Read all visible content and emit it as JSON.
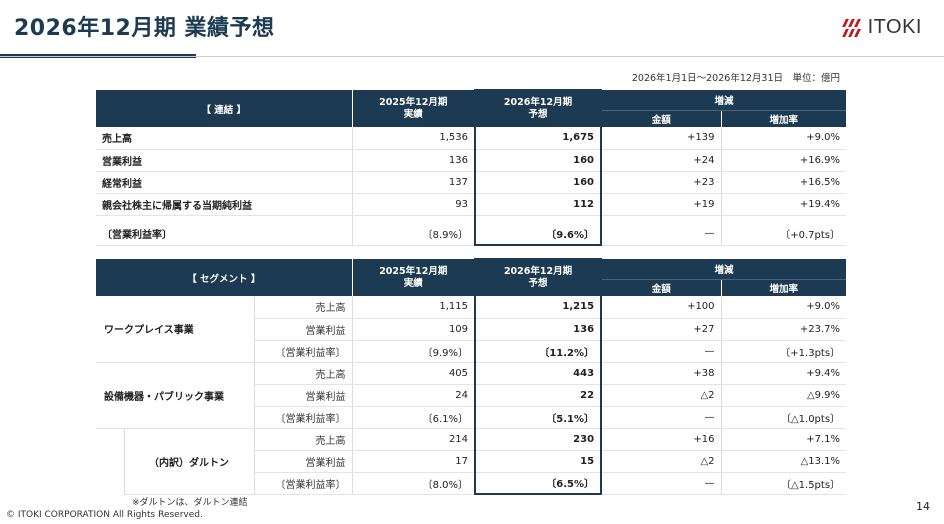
{
  "header": {
    "title": "2026年12月期 業績予想",
    "logo_text": "ITOKI",
    "period": "2026年1月1日～2026年12月31日　単位：億円"
  },
  "consolidated": {
    "section_label": "【 連結 】",
    "col_prev_1": "2025年12月期",
    "col_prev_2": "実績",
    "col_fcst_1": "2026年12月期",
    "col_fcst_2": "予想",
    "col_change": "増減",
    "col_amount": "金額",
    "col_rate": "増加率",
    "rows": [
      {
        "label": "売上高",
        "prev": "1,536",
        "fcst": "1,675",
        "amount": "+139",
        "rate": "+9.0%"
      },
      {
        "label": "営業利益",
        "prev": "136",
        "fcst": "160",
        "amount": "+24",
        "rate": "+16.9%"
      },
      {
        "label": "経常利益",
        "prev": "137",
        "fcst": "160",
        "amount": "+23",
        "rate": "+16.5%"
      },
      {
        "label": "親会社株主に帰属する当期純利益",
        "prev": "93",
        "fcst": "112",
        "amount": "+19",
        "rate": "+19.4%"
      }
    ],
    "margin_row": {
      "label": "〔営業利益率〕",
      "prev": "〔8.9%〕",
      "fcst": "〔9.6%〕",
      "amount": "—",
      "rate": "〔+0.7pts〕"
    }
  },
  "segment": {
    "section_label": "【 セグメント 】",
    "col_prev_1": "2025年12月期",
    "col_prev_2": "実績",
    "col_fcst_1": "2026年12月期",
    "col_fcst_2": "予想",
    "col_change": "増減",
    "col_amount": "金額",
    "col_rate": "増加率",
    "groups": [
      {
        "name": "ワークプレイス事業",
        "rows": [
          {
            "label": "売上高",
            "prev": "1,115",
            "fcst": "1,215",
            "amount": "+100",
            "rate": "+9.0%"
          },
          {
            "label": "営業利益",
            "prev": "109",
            "fcst": "136",
            "amount": "+27",
            "rate": "+23.7%"
          },
          {
            "label": "〔営業利益率〕",
            "prev": "〔9.9%〕",
            "fcst": "〔11.2%〕",
            "amount": "—",
            "rate": "〔+1.3pts〕"
          }
        ]
      },
      {
        "name": "設備機器・パブリック事業",
        "rows": [
          {
            "label": "売上高",
            "prev": "405",
            "fcst": "443",
            "amount": "+38",
            "rate": "+9.4%"
          },
          {
            "label": "営業利益",
            "prev": "24",
            "fcst": "22",
            "amount": "△2",
            "rate": "△9.9%"
          },
          {
            "label": "〔営業利益率〕",
            "prev": "〔6.1%〕",
            "fcst": "〔5.1%〕",
            "amount": "—",
            "rate": "〔△1.0pts〕"
          }
        ]
      },
      {
        "name": "（内訳）ダルトン",
        "rows": [
          {
            "label": "売上高",
            "prev": "214",
            "fcst": "230",
            "amount": "+16",
            "rate": "+7.1%"
          },
          {
            "label": "営業利益",
            "prev": "17",
            "fcst": "15",
            "amount": "△2",
            "rate": "△13.1%"
          },
          {
            "label": "〔営業利益率〕",
            "prev": "〔8.0%〕",
            "fcst": "〔6.5%〕",
            "amount": "—",
            "rate": "〔△1.5pts〕"
          }
        ]
      }
    ]
  },
  "footer": {
    "note": "※ダルトンは、ダルトン連結",
    "copyright": "© ITOKI CORPORATION All Rights Reserved.",
    "page_number": "14"
  },
  "colors": {
    "navy": "#1c3a52",
    "logo_red": "#c4161c"
  }
}
